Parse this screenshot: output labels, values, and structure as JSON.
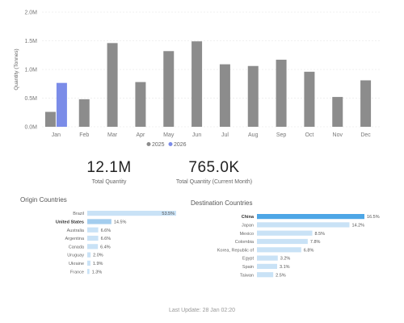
{
  "chart_data": [
    {
      "type": "bar",
      "ylabel": "Quantity (Tonnes)",
      "yticks": [
        "0.0M",
        "0.5M",
        "1.0M",
        "1.5M",
        "2.0M"
      ],
      "ylim": [
        0,
        2000000
      ],
      "grid": true,
      "legend_position": "bottom-center",
      "categories": [
        "Jan",
        "Feb",
        "Mar",
        "Apr",
        "May",
        "Jun",
        "Jul",
        "Aug",
        "Sep",
        "Oct",
        "Nov",
        "Dec"
      ],
      "series": [
        {
          "name": "2025",
          "color": "#8c8c8c",
          "values": [
            260000,
            480000,
            1460000,
            780000,
            1320000,
            1490000,
            1090000,
            1060000,
            1170000,
            960000,
            520000,
            810000
          ]
        },
        {
          "name": "2026",
          "color": "#7b8ce8",
          "values": [
            765000,
            null,
            null,
            null,
            null,
            null,
            null,
            null,
            null,
            null,
            null,
            null
          ]
        }
      ]
    },
    {
      "type": "bar",
      "orientation": "horizontal",
      "title": "Origin Countries",
      "categories": [
        "Brazil",
        "United States",
        "Australia",
        "Argentina",
        "Canada",
        "Uruguay",
        "Ukraine",
        "France"
      ],
      "labels": [
        "53.5%",
        "14.5%",
        "6.6%",
        "6.6%",
        "6.4%",
        "2.0%",
        "1.9%",
        "1.3%"
      ],
      "values": [
        53.5,
        14.5,
        6.6,
        6.6,
        6.4,
        2.0,
        1.9,
        1.3
      ],
      "highlight": "United States"
    },
    {
      "type": "bar",
      "orientation": "horizontal",
      "title": "Destination Countries",
      "categories": [
        "China",
        "Japan",
        "Mexico",
        "Colombia",
        "Korea, Republic of",
        "Egypt",
        "Spain",
        "Taiwan"
      ],
      "labels": [
        "16.5%",
        "14.2%",
        "8.5%",
        "7.8%",
        "6.8%",
        "3.2%",
        "3.1%",
        "2.5%"
      ],
      "values": [
        16.5,
        14.2,
        8.5,
        7.8,
        6.8,
        3.2,
        3.1,
        2.5
      ],
      "highlight": "China"
    }
  ],
  "kpis": {
    "total_quantity": {
      "value": "12.1M",
      "label": "Total Quantity"
    },
    "current_month": {
      "value": "765.0K",
      "label": "Total Quantity (Current Month)"
    }
  },
  "colors": {
    "bar_light": "#c9e2f6",
    "bar_highlight_origin": "#a3cdee",
    "bar_highlight_destination": "#4da6e6",
    "grid": "#ececec"
  },
  "footer": {
    "last_update": "Last Update: 28 Jan 02:20"
  }
}
